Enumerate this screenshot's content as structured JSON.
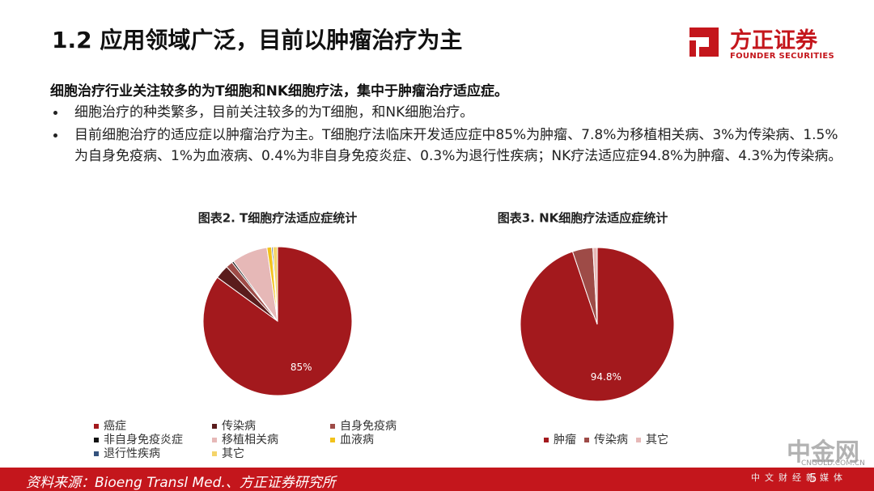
{
  "header": {
    "title": "1.2 应用领域广泛，目前以肿瘤治疗为主",
    "logo_cn": "方正证券",
    "logo_en": "FOUNDER SECURITIES"
  },
  "summary": "细胞治疗行业关注较多的为T细胞和NK细胞疗法，集中于肿瘤治疗适应症。",
  "bullets": [
    "细胞治疗的种类繁多，目前关注较多的为T细胞，和NK细胞治疗。",
    "目前细胞治疗的适应症以肿瘤治疗为主。T细胞疗法临床开发适应症中85%为肿瘤、7.8%为移植相关病、3%为传染病、1.5%为自身免疫病、1%为血液病、0.4%为非自身免疫炎症、0.3%为退行性疾病；NK疗法适应症94.8%为肿瘤、4.3%为传染病。"
  ],
  "chart_data": [
    {
      "type": "pie",
      "title": "图表2. T细胞疗法适应症统计",
      "categories": [
        "癌症",
        "传染病",
        "自身免疫病",
        "非自身免疫炎症",
        "移植相关病",
        "血液病",
        "退行性疾病",
        "其它"
      ],
      "values": [
        85,
        3,
        1.5,
        0.4,
        7.8,
        1,
        0.3,
        1
      ],
      "value_labels": [
        "85%",
        null,
        null,
        null,
        null,
        null,
        null,
        null
      ],
      "colors": [
        "#a3191d",
        "#5a1c1c",
        "#9e4b47",
        "#111111",
        "#e6b8b7",
        "#f2c21b",
        "#34527d",
        "#f4d46a"
      ]
    },
    {
      "type": "pie",
      "title": "图表3. NK细胞疗法适应症统计",
      "categories": [
        "肿瘤",
        "传染病",
        "其它"
      ],
      "values": [
        94.8,
        4.3,
        0.9
      ],
      "value_labels": [
        "94.8%",
        null,
        null
      ],
      "colors": [
        "#a3191d",
        "#9e4b47",
        "#e6b8b7"
      ]
    }
  ],
  "footer": {
    "source": "资料来源：Bioeng Transl Med.、方正证券研究所",
    "page": "5"
  },
  "watermark": {
    "name": "中金网",
    "domain": "CNGOLD.COM.CN",
    "tagline": "中文财经新媒体"
  }
}
